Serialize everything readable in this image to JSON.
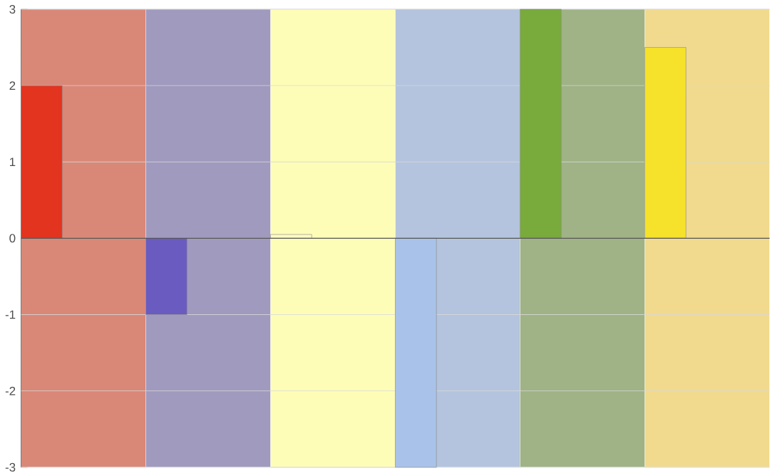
{
  "chart_data": {
    "type": "bar",
    "categories": [
      null,
      null,
      null,
      null,
      null,
      null
    ],
    "values": [
      2,
      -1,
      0.05,
      -3,
      3,
      2.5
    ],
    "colors": [
      "#e2341f",
      "#6a5bc0",
      "#fffbc4",
      "#a9c2ea",
      "#78ab3c",
      "#f6e22a"
    ],
    "ylim": [
      -3,
      3
    ],
    "yticks": [
      -3,
      -2,
      -1,
      0,
      1,
      2,
      3
    ],
    "grid": "y",
    "ref_lines": [
      {
        "axis": "y",
        "value": 0,
        "color": "#555555"
      }
    ]
  }
}
